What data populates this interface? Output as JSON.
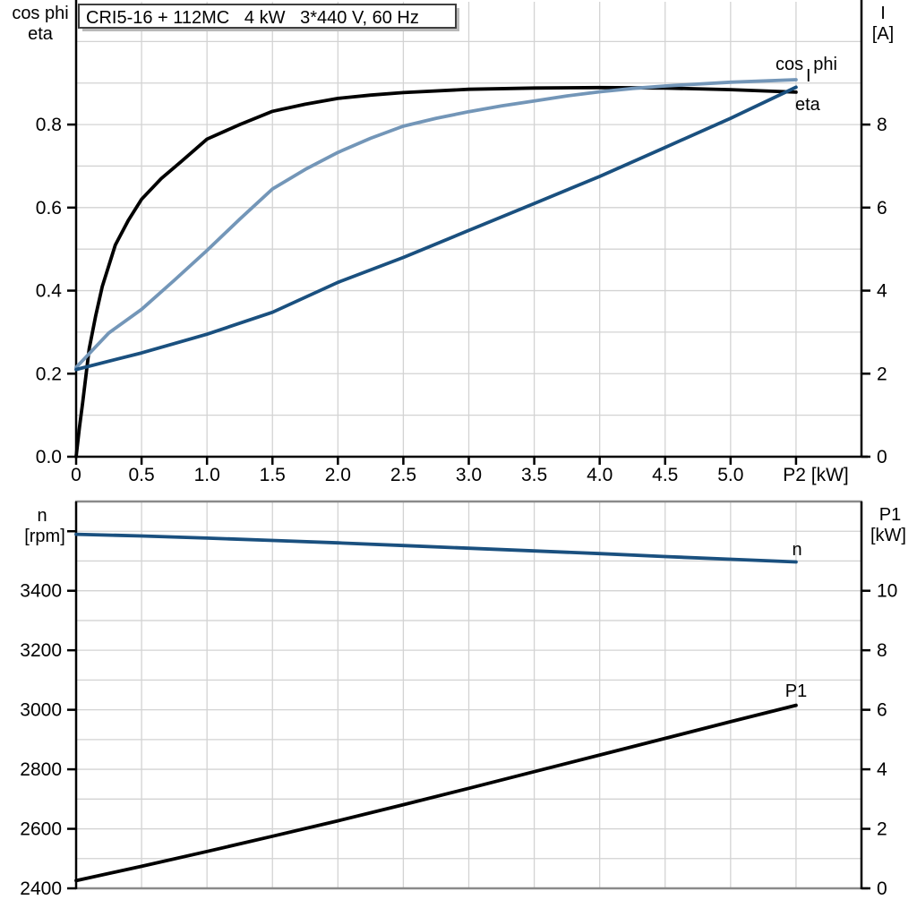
{
  "title": "CRI5-16 + 112MC   4 kW   3*440 V, 60 Hz",
  "colors": {
    "black": "#000000",
    "dark_blue": "#1a507f",
    "light_blue": "#7396b8",
    "grid": "#d3d3d3",
    "gray_frame": "#8a8a8a"
  },
  "chart_data": [
    {
      "type": "line",
      "title": "CRI5-16 + 112MC   4 kW   3*440 V, 60 Hz",
      "x_axis": {
        "label": "P2 [kW]",
        "range": [
          0,
          6
        ],
        "grid_step": 0.5,
        "ticks": [
          {
            "v": 0,
            "t": "0"
          },
          {
            "v": 0.5,
            "t": "0.5"
          },
          {
            "v": 1,
            "t": "1.0"
          },
          {
            "v": 1.5,
            "t": "1.5"
          },
          {
            "v": 2,
            "t": "2.0"
          },
          {
            "v": 2.5,
            "t": "2.5"
          },
          {
            "v": 3,
            "t": "3.0"
          },
          {
            "v": 3.5,
            "t": "3.5"
          },
          {
            "v": 4,
            "t": "4.0"
          },
          {
            "v": 4.5,
            "t": "4.5"
          },
          {
            "v": 5,
            "t": "5.0"
          },
          {
            "v": 5.5,
            "t": ""
          }
        ]
      },
      "left_axis": {
        "label_lines": [
          "cos phi",
          "eta"
        ],
        "range": [
          0,
          1.1
        ],
        "grid_step": 0.1,
        "ticks": [
          {
            "v": 0,
            "t": "0.0"
          },
          {
            "v": 0.2,
            "t": "0.2"
          },
          {
            "v": 0.4,
            "t": "0.4"
          },
          {
            "v": 0.6,
            "t": "0.6"
          },
          {
            "v": 0.8,
            "t": "0.8"
          }
        ]
      },
      "right_axis": {
        "label_lines": [
          "I",
          "[A]"
        ],
        "range": [
          0,
          11
        ],
        "ticks": [
          {
            "v": 0,
            "t": "0"
          },
          {
            "v": 2,
            "t": "2"
          },
          {
            "v": 4,
            "t": "4"
          },
          {
            "v": 6,
            "t": "6"
          },
          {
            "v": 8,
            "t": "8"
          }
        ]
      },
      "series": [
        {
          "name": "eta",
          "label": "eta",
          "axis": "left",
          "color": "#000000",
          "label_color": "#000000",
          "points": [
            [
              0,
              0
            ],
            [
              0.025,
              0.07
            ],
            [
              0.05,
              0.13
            ],
            [
              0.1,
              0.26
            ],
            [
              0.15,
              0.34
            ],
            [
              0.2,
              0.41
            ],
            [
              0.3,
              0.51
            ],
            [
              0.4,
              0.57
            ],
            [
              0.5,
              0.62
            ],
            [
              0.65,
              0.67
            ],
            [
              0.8,
              0.71
            ],
            [
              1.0,
              0.765
            ],
            [
              1.25,
              0.8
            ],
            [
              1.5,
              0.832
            ],
            [
              1.75,
              0.849
            ],
            [
              2.0,
              0.863
            ],
            [
              2.25,
              0.871
            ],
            [
              2.5,
              0.877
            ],
            [
              3.0,
              0.885
            ],
            [
              3.5,
              0.888
            ],
            [
              4.0,
              0.889
            ],
            [
              4.5,
              0.888
            ],
            [
              5.0,
              0.884
            ],
            [
              5.5,
              0.878
            ]
          ]
        },
        {
          "name": "cos phi",
          "label": "cos  phi",
          "axis": "left",
          "color": "#7396b8",
          "label_color": "#7396b8",
          "points": [
            [
              0,
              0.215
            ],
            [
              0.25,
              0.298
            ],
            [
              0.5,
              0.355
            ],
            [
              0.75,
              0.425
            ],
            [
              1.0,
              0.497
            ],
            [
              1.25,
              0.572
            ],
            [
              1.5,
              0.645
            ],
            [
              1.75,
              0.692
            ],
            [
              2.0,
              0.733
            ],
            [
              2.25,
              0.767
            ],
            [
              2.5,
              0.796
            ],
            [
              2.75,
              0.815
            ],
            [
              3.0,
              0.831
            ],
            [
              3.25,
              0.845
            ],
            [
              3.5,
              0.857
            ],
            [
              3.75,
              0.869
            ],
            [
              4.0,
              0.879
            ],
            [
              4.25,
              0.887
            ],
            [
              4.5,
              0.893
            ],
            [
              5.0,
              0.902
            ],
            [
              5.5,
              0.908
            ]
          ]
        },
        {
          "name": "I",
          "label": "I",
          "axis": "right",
          "color": "#1a507f",
          "label_color": "#1a507f",
          "points": [
            [
              0,
              2.1
            ],
            [
              0.5,
              2.5
            ],
            [
              1.0,
              2.95
            ],
            [
              1.5,
              3.48
            ],
            [
              2.0,
              4.2
            ],
            [
              2.5,
              4.8
            ],
            [
              3.0,
              5.45
            ],
            [
              3.5,
              6.1
            ],
            [
              4.0,
              6.75
            ],
            [
              4.5,
              7.45
            ],
            [
              5.0,
              8.15
            ],
            [
              5.5,
              8.9
            ]
          ]
        }
      ]
    },
    {
      "type": "line",
      "title": "",
      "x_axis": {
        "label": "",
        "range": [
          0,
          6
        ],
        "grid_step": 0.5,
        "ticks": []
      },
      "left_axis": {
        "label_lines": [
          "n",
          "[rpm]"
        ],
        "range": [
          2400,
          3700
        ],
        "grid_step": 100,
        "ticks": [
          {
            "v": 2400,
            "t": "2400"
          },
          {
            "v": 2600,
            "t": "2600"
          },
          {
            "v": 2800,
            "t": "2800"
          },
          {
            "v": 3000,
            "t": "3000"
          },
          {
            "v": 3200,
            "t": "3200"
          },
          {
            "v": 3400,
            "t": "3400"
          },
          {
            "v": 3600,
            "t": ""
          }
        ]
      },
      "right_axis": {
        "label_lines": [
          "P1",
          "[kW]"
        ],
        "range": [
          0,
          13
        ],
        "ticks": [
          {
            "v": 0,
            "t": "0"
          },
          {
            "v": 2,
            "t": "2"
          },
          {
            "v": 4,
            "t": "4"
          },
          {
            "v": 6,
            "t": "6"
          },
          {
            "v": 8,
            "t": "8"
          },
          {
            "v": 10,
            "t": "10"
          }
        ]
      },
      "series": [
        {
          "name": "P1",
          "label": "P1",
          "axis": "right",
          "color": "#000000",
          "label_color": "#1a507f",
          "points": [
            [
              0,
              0.26
            ],
            [
              0.5,
              0.74
            ],
            [
              1.0,
              1.24
            ],
            [
              1.5,
              1.75
            ],
            [
              2.0,
              2.27
            ],
            [
              2.5,
              2.81
            ],
            [
              3.0,
              3.36
            ],
            [
              3.5,
              3.92
            ],
            [
              4.0,
              4.48
            ],
            [
              4.5,
              5.04
            ],
            [
              5.0,
              5.6
            ],
            [
              5.5,
              6.15
            ]
          ]
        },
        {
          "name": "n",
          "label": "n",
          "axis": "left",
          "color": "#1a507f",
          "label_color": "#1a507f",
          "points": [
            [
              0,
              3590
            ],
            [
              0.5,
              3584
            ],
            [
              1.0,
              3577
            ],
            [
              1.5,
              3569
            ],
            [
              2.0,
              3561
            ],
            [
              2.5,
              3552
            ],
            [
              3.0,
              3543
            ],
            [
              3.5,
              3534
            ],
            [
              4.0,
              3525
            ],
            [
              4.5,
              3515
            ],
            [
              5.0,
              3506
            ],
            [
              5.5,
              3497
            ]
          ]
        }
      ]
    }
  ]
}
